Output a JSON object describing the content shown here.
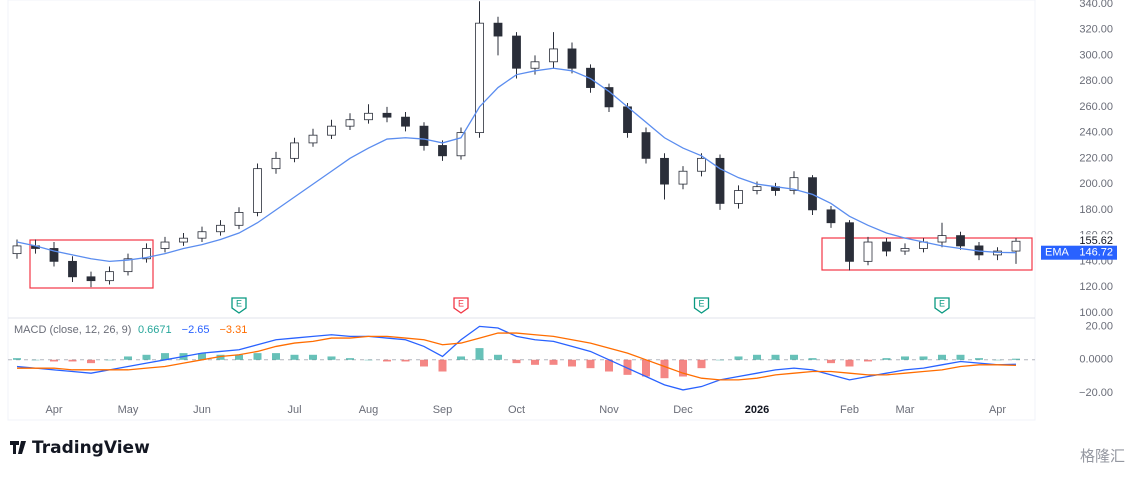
{
  "chart_data": [
    {
      "type": "candlestick",
      "categories": [
        null,
        null,
        "Apr",
        null,
        null,
        null,
        "May",
        null,
        null,
        null,
        "Jun",
        null,
        null,
        null,
        null,
        "Jul",
        null,
        null,
        null,
        "Aug",
        null,
        null,
        null,
        "Sep",
        null,
        null,
        null,
        "Oct",
        null,
        null,
        null,
        null,
        "Nov",
        null,
        null,
        null,
        "Dec",
        null,
        null,
        null,
        "2026",
        null,
        null,
        null,
        null,
        "Feb",
        null,
        null,
        "Mar",
        null,
        null,
        null,
        null,
        "Apr",
        null
      ],
      "open": [
        146,
        152,
        150,
        140,
        128,
        125,
        132,
        142,
        150,
        155,
        158,
        163,
        168,
        178,
        212,
        220,
        232,
        238,
        245,
        250,
        255,
        252,
        245,
        230,
        222,
        240,
        325,
        315,
        290,
        295,
        305,
        290,
        275,
        260,
        240,
        220,
        200,
        210,
        220,
        185,
        195,
        198,
        195,
        205,
        180,
        170,
        140,
        155,
        148,
        150,
        155,
        160,
        152,
        145,
        148
      ],
      "high": [
        157,
        157,
        155,
        144,
        132,
        136,
        146,
        154,
        159,
        162,
        167,
        172,
        182,
        216,
        225,
        236,
        243,
        250,
        255,
        262,
        260,
        256,
        248,
        234,
        244,
        342,
        330,
        318,
        300,
        318,
        310,
        293,
        278,
        263,
        244,
        224,
        214,
        224,
        223,
        199,
        202,
        201,
        210,
        207,
        183,
        172,
        159,
        158,
        154,
        158,
        170,
        163,
        155,
        151,
        158
      ],
      "low": [
        142,
        146,
        136,
        124,
        120,
        122,
        129,
        139,
        147,
        152,
        155,
        160,
        165,
        175,
        208,
        217,
        229,
        235,
        242,
        247,
        248,
        241,
        226,
        218,
        219,
        236,
        300,
        282,
        285,
        290,
        286,
        271,
        256,
        236,
        216,
        188,
        196,
        206,
        180,
        181,
        192,
        191,
        192,
        176,
        166,
        133,
        137,
        144,
        145,
        147,
        151,
        149,
        141,
        141,
        138
      ],
      "close": [
        152,
        150,
        140,
        128,
        125,
        132,
        142,
        150,
        155,
        158,
        163,
        168,
        178,
        212,
        220,
        232,
        238,
        245,
        250,
        255,
        252,
        245,
        230,
        222,
        240,
        325,
        315,
        290,
        295,
        305,
        290,
        275,
        260,
        240,
        220,
        200,
        210,
        220,
        185,
        195,
        198,
        195,
        205,
        180,
        170,
        140,
        155,
        148,
        150,
        155,
        160,
        152,
        145,
        148,
        155.62
      ],
      "last_label": "155.62",
      "up_color": "#ffffff",
      "down_color": "#2a2e39",
      "edge_color": "#2a2e39",
      "ema": {
        "name": "EMA",
        "color": "#5b8def",
        "last_label": "146.72",
        "values": [
          155,
          152,
          148,
          145,
          142,
          140,
          141,
          143,
          146,
          150,
          153,
          157,
          162,
          170,
          180,
          190,
          200,
          210,
          220,
          228,
          235,
          236,
          235,
          232,
          236,
          260,
          275,
          285,
          288,
          290,
          288,
          282,
          272,
          260,
          248,
          236,
          228,
          222,
          212,
          205,
          200,
          198,
          196,
          192,
          185,
          175,
          168,
          162,
          158,
          155,
          152,
          150,
          148,
          147,
          146.72
        ]
      },
      "events": [
        {
          "index": 12,
          "label": "E",
          "color": "#089981"
        },
        {
          "index": 24,
          "label": "E",
          "color": "#f23645"
        },
        {
          "index": 37,
          "label": "E",
          "color": "#089981"
        },
        {
          "index": 50,
          "label": "E",
          "color": "#089981"
        }
      ],
      "ylim": [
        96,
        343
      ],
      "yticks": [
        {
          "value": 100,
          "label": "100.00"
        },
        {
          "value": 120,
          "label": "120.00"
        },
        {
          "value": 140,
          "label": "140.00"
        },
        {
          "value": 160,
          "label": "160.00"
        },
        {
          "value": 180,
          "label": "180.00"
        },
        {
          "value": 200,
          "label": "200.00"
        },
        {
          "value": 220,
          "label": "220.00"
        },
        {
          "value": 240,
          "label": "240.00"
        },
        {
          "value": 260,
          "label": "260.00"
        },
        {
          "value": 280,
          "label": "280.00"
        },
        {
          "value": 300,
          "label": "300.00"
        },
        {
          "value": 320,
          "label": "320.00"
        },
        {
          "value": 340,
          "label": "340.00"
        }
      ]
    },
    {
      "type": "macd",
      "title": "MACD (close, 12, 26, 9)",
      "series": [
        {
          "kind": "bar",
          "colors": [
            "#26a69a",
            "#ef5350"
          ],
          "last_label": "0.6671",
          "values": [
            1,
            0,
            -1,
            -1,
            -2,
            0,
            2,
            3,
            4,
            4,
            4,
            3,
            3,
            4,
            4,
            3,
            3,
            2,
            1,
            0,
            -1,
            -1,
            -4,
            -7,
            2,
            7,
            3,
            -2,
            -3,
            -3,
            -4,
            -5,
            -7,
            -9,
            -10,
            -11,
            -10,
            -5,
            0,
            2,
            3,
            3,
            3,
            1,
            -2,
            -4,
            -1,
            1,
            2,
            2,
            3,
            3,
            1,
            0,
            0.6671
          ]
        },
        {
          "kind": "line",
          "color": "#2962ff",
          "last_label": "−2.65",
          "values": [
            -4,
            -5,
            -6,
            -7,
            -8,
            -6,
            -4,
            -2,
            0,
            2,
            4,
            5,
            6,
            9,
            12,
            13,
            14,
            15,
            14,
            14,
            13,
            12,
            8,
            2,
            12,
            20,
            19,
            14,
            12,
            11,
            8,
            5,
            0,
            -5,
            -10,
            -15,
            -18,
            -16,
            -12,
            -10,
            -8,
            -6,
            -5,
            -6,
            -9,
            -12,
            -10,
            -8,
            -6,
            -5,
            -3,
            -1,
            -2,
            -3,
            -2.65
          ]
        },
        {
          "kind": "line",
          "color": "#ff6d00",
          "last_label": "−3.31",
          "values": [
            -5,
            -5,
            -5,
            -6,
            -6,
            -6,
            -6,
            -5,
            -4,
            -2,
            0,
            2,
            3,
            5,
            8,
            10,
            11,
            13,
            13,
            14,
            14,
            13,
            12,
            9,
            10,
            13,
            16,
            16,
            15,
            14,
            12,
            10,
            7,
            4,
            0,
            -4,
            -8,
            -11,
            -12,
            -12,
            -11,
            -9,
            -8,
            -7,
            -7,
            -8,
            -9,
            -9,
            -8,
            -7,
            -6,
            -4,
            -3,
            -3,
            -3.31
          ]
        }
      ],
      "zero_line": true,
      "ylim": [
        -36,
        25
      ],
      "yticks": [
        {
          "value": -20,
          "label": "−20.00"
        },
        {
          "value": 0,
          "label": "0.0000"
        },
        {
          "value": 20,
          "label": "20.00"
        }
      ]
    }
  ],
  "footer": {
    "brand": "TradingView",
    "watermark": "格隆汇"
  }
}
